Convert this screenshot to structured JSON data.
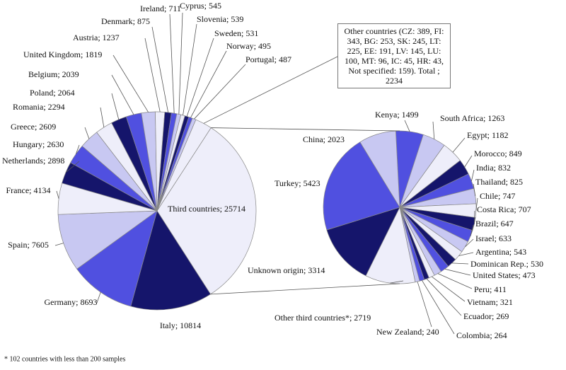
{
  "chart_data": [
    {
      "type": "pie",
      "values": [
        25714,
        10814,
        8693,
        7605,
        4134,
        2898,
        2630,
        2609,
        2294,
        2064,
        2039,
        1819,
        1237,
        875,
        711,
        545,
        539,
        531,
        495,
        487,
        2234
      ],
      "value_labels": [
        "Third countries; 25714",
        "Italy; 10814",
        "Germany; 8693",
        "Spain; 7605",
        "France; 4134",
        "Netherlands; 2898",
        "Hungary; 2630",
        "Greece; 2609",
        "Romania; 2294",
        "Poland; 2064",
        "Belgium; 2039",
        "United Kingdom; 1819",
        "Austria; 1237",
        "Denmark; 875",
        "Ireland; 711",
        "Cyprus; 545",
        "Slovenia; 539",
        "Sweden; 531",
        "Norway; 495",
        "Portugal; 487",
        "Other countries (CZ: 389, FI: 343, BG: 253, SK: 245, LT: 225, EE: 191, LV: 145, LU: 100, MT: 96, IC: 45, HR: 43, Not specified: 159). Total ; 2234"
      ],
      "colors": [
        "#eeeefa",
        "#15156b",
        "#5050e0",
        "#c8c8f2"
      ]
    },
    {
      "type": "pie",
      "values": [
        1499,
        1263,
        1182,
        849,
        832,
        825,
        747,
        707,
        647,
        633,
        543,
        530,
        473,
        411,
        321,
        269,
        264,
        240,
        2719,
        3314,
        5423,
        2023
      ],
      "value_labels": [
        "Kenya; 1499",
        "South Africa; 1263",
        "Egypt; 1182",
        "Morocco; 849",
        "India; 832",
        "Thailand; 825",
        "Chile; 747",
        "Costa Rica; 707",
        "Brazil; 647",
        "Israel; 633",
        "Argentina; 543",
        "Dominican Rep.; 530",
        "United States; 473",
        "Peru; 411",
        "Vietnam; 321",
        "Ecuador; 269",
        "Colombia; 264",
        "New Zealand; 240",
        "Other third countries*; 2719",
        "Unknown origin; 3314",
        "Turkey; 5423",
        "China; 2023"
      ],
      "colors": [
        "#5050e0",
        "#c8c8f2",
        "#eeeefa",
        "#15156b"
      ]
    }
  ],
  "footnote": "* 102 countries with less than 200 samples"
}
